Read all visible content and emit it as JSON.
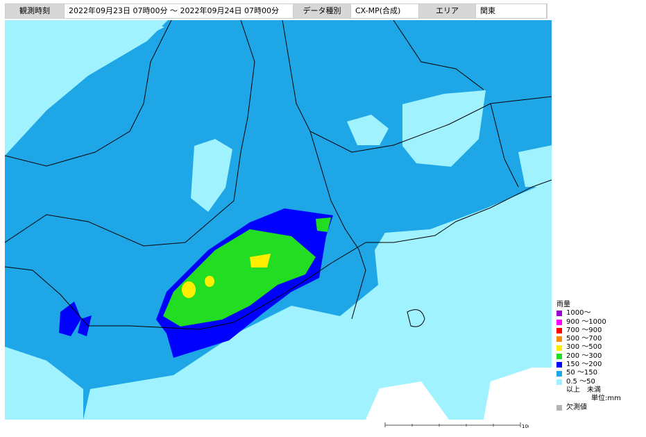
{
  "header": {
    "cells": [
      {
        "text": "観測時刻",
        "label_cell": true
      },
      {
        "text": "2022年09月23日 07時00分 〜 2022年09月24日 07時00分",
        "label_cell": false
      },
      {
        "text": "データ種別",
        "label_cell": true
      },
      {
        "text": "CX-MP(合成)",
        "label_cell": false
      },
      {
        "text": "エリア",
        "label_cell": true
      },
      {
        "text": "関東",
        "label_cell": false
      }
    ]
  },
  "legend": {
    "title": "雨量",
    "items": [
      {
        "label": "1000〜",
        "color": "#9a00d0"
      },
      {
        "label": "900 〜1000",
        "color": "#ff00ff"
      },
      {
        "label": "700 〜900",
        "color": "#ff0000"
      },
      {
        "label": "500 〜700",
        "color": "#ff8c00"
      },
      {
        "label": "300 〜500",
        "color": "#ffee00"
      },
      {
        "label": "200 〜300",
        "color": "#22dd22"
      },
      {
        "label": "150 〜200",
        "color": "#0000ff"
      },
      {
        "label": "50  〜150",
        "color": "#1ea6e6"
      },
      {
        "label": "0.5 〜50",
        "color": "#a0f2ff"
      }
    ],
    "range_note": "以上　未満",
    "unit": "単位:mm",
    "missing": {
      "label": "欠測値",
      "color": "#b4b4b4"
    }
  },
  "scale": {
    "label": "100km"
  }
}
